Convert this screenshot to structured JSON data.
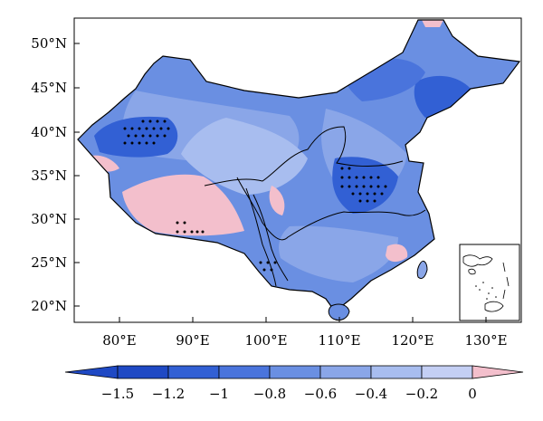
{
  "map": {
    "lat_labels": [
      "50°N",
      "45°N",
      "40°N",
      "35°N",
      "30°N",
      "25°N",
      "20°N"
    ],
    "lon_labels": [
      "80°E",
      "90°E",
      "100°E",
      "110°E",
      "120°E",
      "130°E"
    ],
    "colorbar": {
      "labels": [
        "−1.5",
        "−1.2",
        "−1",
        "−0.8",
        "−0.6",
        "−0.4",
        "−0.2",
        "0"
      ],
      "colors": [
        "#1f49c4",
        "#3260d4",
        "#4a74dc",
        "#6a8fe2",
        "#8aa6e8",
        "#a8bdef",
        "#c4cff4",
        "#f3bfcc"
      ]
    }
  }
}
